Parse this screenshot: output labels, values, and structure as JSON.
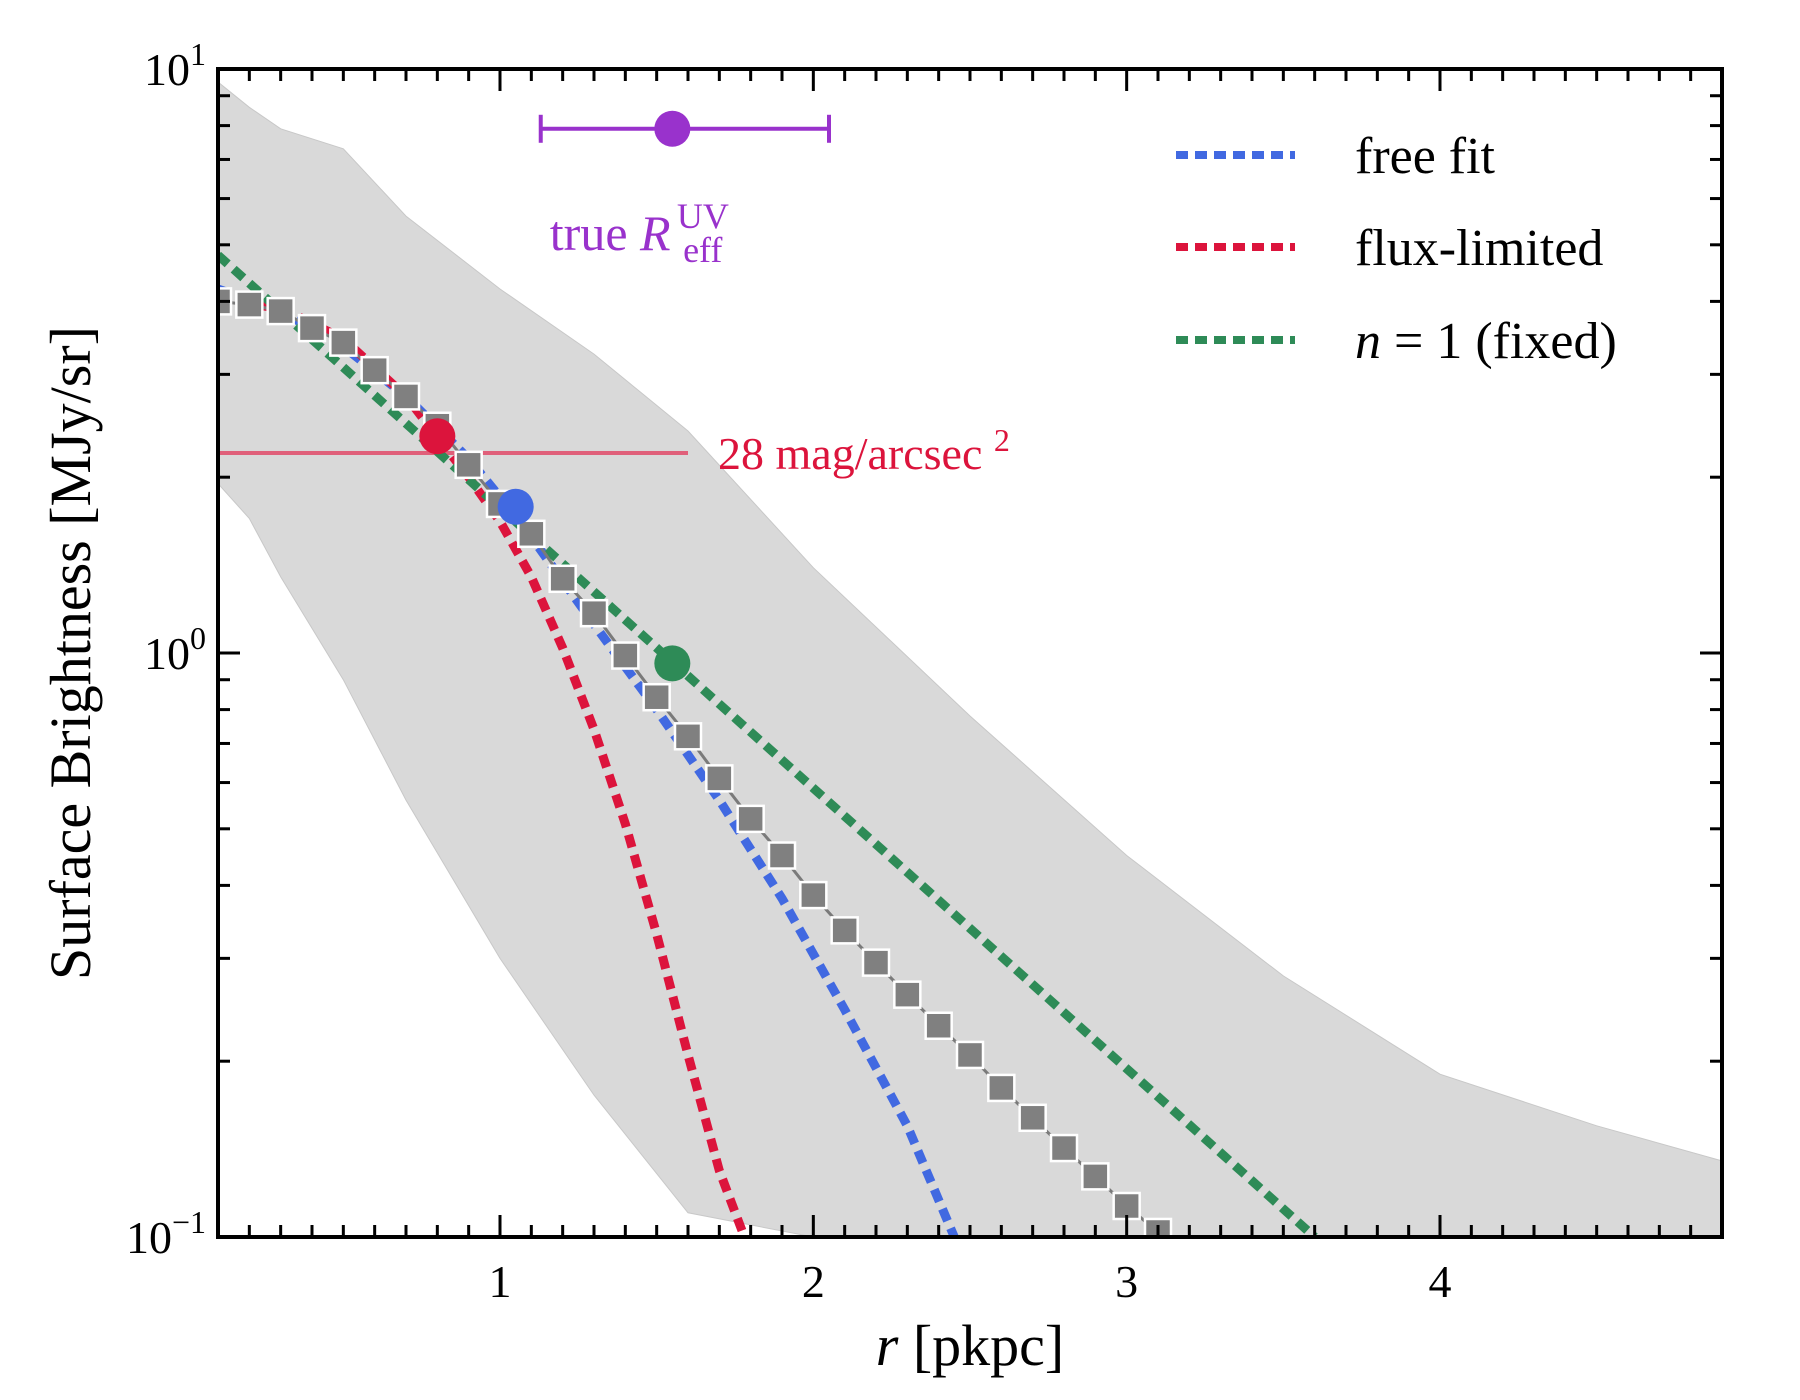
{
  "chart_data": {
    "type": "line",
    "xlabel": {
      "symbol": "r",
      "unit": "[pkpc]"
    },
    "ylabel": "Surface Brightness [MJy/sr]",
    "xlim": [
      0.1,
      4.9
    ],
    "ylim": [
      0.1,
      10
    ],
    "yscale": "log",
    "xticks": [
      {
        "value": 1,
        "label": "1"
      },
      {
        "value": 2,
        "label": "2"
      },
      {
        "value": 3,
        "label": "3"
      },
      {
        "value": 4,
        "label": "4"
      }
    ],
    "yticks": [
      {
        "value": 0.1,
        "base": "10",
        "exp": "−1"
      },
      {
        "value": 1,
        "base": "10",
        "exp": "0"
      },
      {
        "value": 10,
        "base": "10",
        "exp": "1"
      }
    ],
    "legend": {
      "position": "top-right",
      "entries": [
        {
          "label": "free fit",
          "color": "#4169e1"
        },
        {
          "label": "flux-limited",
          "color": "#dc143c"
        },
        {
          "label_math": "n",
          "label_eq": " = 1",
          "label_rest": " (fixed)",
          "color": "#2e8b57"
        }
      ]
    },
    "band": {
      "color": "#d9d9d9",
      "x": [
        0.1,
        0.2,
        0.3,
        0.5,
        0.7,
        1.0,
        1.3,
        1.6,
        2.0,
        2.5,
        3.0,
        3.5,
        4.0,
        4.5,
        4.9
      ],
      "upper": [
        9.5,
        8.6,
        7.9,
        7.3,
        5.6,
        4.2,
        3.25,
        2.4,
        1.4,
        0.78,
        0.45,
        0.28,
        0.19,
        0.155,
        0.135
      ],
      "lower": [
        1.95,
        1.7,
        1.35,
        0.9,
        0.56,
        0.3,
        0.175,
        0.11,
        0.075,
        0.05,
        0.04,
        0.035,
        0.03,
        0.027,
        0.025
      ]
    },
    "series": [
      {
        "name": "profile data",
        "color": "#808080",
        "marker": "square",
        "x": [
          0.1,
          0.2,
          0.3,
          0.4,
          0.5,
          0.6,
          0.7,
          0.8,
          0.9,
          1.0,
          1.1,
          1.2,
          1.3,
          1.4,
          1.5,
          1.6,
          1.7,
          1.8,
          1.9,
          2.0,
          2.1,
          2.2,
          2.3,
          2.4,
          2.5,
          2.6,
          2.7,
          2.8,
          2.9,
          3.0,
          3.1
        ],
        "y": [
          4.0,
          3.95,
          3.85,
          3.6,
          3.4,
          3.05,
          2.75,
          2.45,
          2.1,
          1.8,
          1.6,
          1.34,
          1.17,
          0.99,
          0.84,
          0.72,
          0.61,
          0.52,
          0.45,
          0.385,
          0.335,
          0.295,
          0.26,
          0.23,
          0.205,
          0.18,
          0.16,
          0.142,
          0.127,
          0.113,
          0.102
        ]
      },
      {
        "name": "free fit",
        "color": "#4169e1",
        "style": "dotted",
        "x": [
          0.1,
          0.3,
          0.5,
          0.7,
          0.9,
          1.0,
          1.1,
          1.3,
          1.5,
          1.7,
          1.9,
          2.1,
          2.3,
          2.45
        ],
        "y": [
          4.2,
          3.85,
          3.35,
          2.75,
          2.15,
          1.85,
          1.58,
          1.12,
          0.8,
          0.56,
          0.38,
          0.245,
          0.155,
          0.1
        ]
      },
      {
        "name": "flux-limited",
        "color": "#dc143c",
        "style": "dotted",
        "x": [
          0.1,
          0.3,
          0.5,
          0.7,
          0.9,
          1.0,
          1.1,
          1.2,
          1.3,
          1.4,
          1.5,
          1.6,
          1.7,
          1.78
        ],
        "y": [
          4.0,
          3.9,
          3.45,
          2.75,
          2.0,
          1.68,
          1.35,
          1.02,
          0.74,
          0.51,
          0.33,
          0.205,
          0.13,
          0.1
        ]
      },
      {
        "name": "n = 1 (fixed)",
        "color": "#2e8b57",
        "style": "dotted",
        "x": [
          0.1,
          3.6
        ],
        "y": [
          4.8,
          0.1
        ]
      }
    ],
    "markers": [
      {
        "name": "flux-limited R_eff",
        "x": 0.8,
        "y": 2.35,
        "color": "#dc143c"
      },
      {
        "name": "free fit R_eff",
        "x": 1.05,
        "y": 1.78,
        "color": "#4169e1"
      },
      {
        "name": "n=1 R_eff",
        "x": 1.55,
        "y": 0.96,
        "color": "#2e8b57"
      }
    ],
    "true_reff": {
      "x": 1.55,
      "xerr_low": 1.13,
      "xerr_high": 2.05,
      "y": 7.9,
      "color": "#9932cc",
      "label_prefix": "true ",
      "label_symbol": "R",
      "label_sub": "eff",
      "label_sup": "UV"
    },
    "threshold": {
      "y": 2.2,
      "x_start": 0.1,
      "x_end": 1.6,
      "color": "#e0607a",
      "label_number": "28",
      "label_unit": " mag/arcsec",
      "label_sup": "2",
      "label_color": "#dc143c"
    }
  }
}
